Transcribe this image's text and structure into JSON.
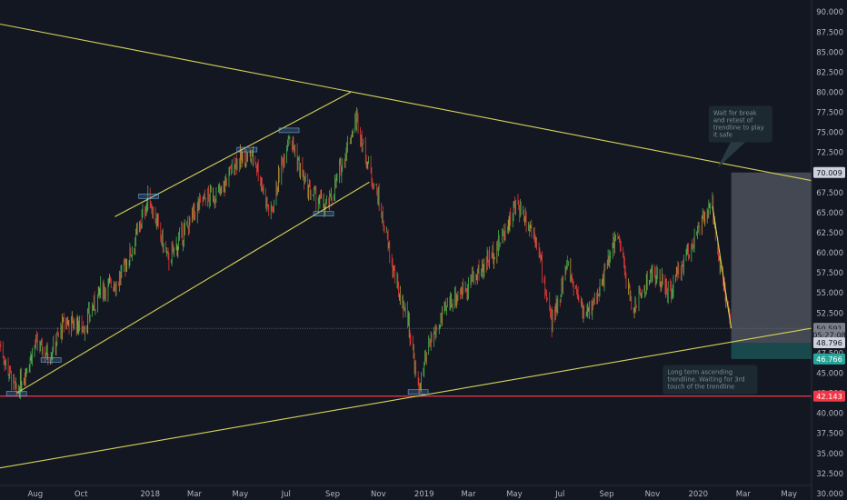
{
  "chart_data": {
    "type": "candlestick",
    "x_ticks": [
      "Aug",
      "Oct",
      "2018",
      "Mar",
      "May",
      "Jul",
      "Sep",
      "Nov",
      "2019",
      "Mar",
      "May",
      "Jul",
      "Sep",
      "Nov",
      "2020",
      "Mar",
      "May"
    ],
    "y_ticks": [
      "90.000",
      "87.500",
      "85.000",
      "82.500",
      "80.000",
      "77.500",
      "75.000",
      "72.500",
      "70.000",
      "67.500",
      "65.000",
      "62.500",
      "60.000",
      "57.500",
      "55.000",
      "52.500",
      "50.000",
      "47.500",
      "45.000",
      "42.500",
      "40.000",
      "37.500",
      "35.000",
      "32.500",
      "30.000"
    ],
    "ylim": [
      29.2,
      91.5
    ],
    "x_range": [
      "2017-06-15",
      "2020-05-31"
    ],
    "anchors": [
      [
        "2017-06-15",
        48.5
      ],
      [
        "2017-07-07",
        42.4
      ],
      [
        "2017-08-01",
        48.6
      ],
      [
        "2017-08-20",
        47.3
      ],
      [
        "2017-09-10",
        51.5
      ],
      [
        "2017-10-05",
        50.8
      ],
      [
        "2017-10-28",
        55.5
      ],
      [
        "2017-11-20",
        56.5
      ],
      [
        "2017-12-10",
        61.0
      ],
      [
        "2017-12-30",
        67.0
      ],
      [
        "2018-01-25",
        59.0
      ],
      [
        "2018-02-15",
        62.5
      ],
      [
        "2018-03-10",
        66.5
      ],
      [
        "2018-04-05",
        67.5
      ],
      [
        "2018-04-25",
        71.5
      ],
      [
        "2018-05-20",
        72.0
      ],
      [
        "2018-06-10",
        64.5
      ],
      [
        "2018-07-05",
        75.0
      ],
      [
        "2018-07-28",
        68.0
      ],
      [
        "2018-08-25",
        65.5
      ],
      [
        "2018-09-15",
        71.5
      ],
      [
        "2018-10-03",
        76.8
      ],
      [
        "2018-10-15",
        72.0
      ],
      [
        "2018-10-30",
        67.5
      ],
      [
        "2018-11-25",
        56.0
      ],
      [
        "2018-12-10",
        52.0
      ],
      [
        "2018-12-24",
        42.8
      ],
      [
        "2019-01-10",
        49.0
      ],
      [
        "2019-02-05",
        54.0
      ],
      [
        "2019-03-10",
        57.0
      ],
      [
        "2019-04-10",
        61.0
      ],
      [
        "2019-05-05",
        66.2
      ],
      [
        "2019-05-30",
        62.0
      ],
      [
        "2019-06-20",
        51.0
      ],
      [
        "2019-07-10",
        58.5
      ],
      [
        "2019-08-05",
        52.0
      ],
      [
        "2019-08-25",
        56.0
      ],
      [
        "2019-09-15",
        62.5
      ],
      [
        "2019-10-05",
        53.0
      ],
      [
        "2019-11-01",
        57.5
      ],
      [
        "2019-11-25",
        55.0
      ],
      [
        "2019-12-20",
        60.5
      ],
      [
        "2020-01-08",
        64.0
      ],
      [
        "2020-01-20",
        65.8
      ],
      [
        "2020-01-30",
        58.5
      ],
      [
        "2020-02-14",
        50.5
      ]
    ],
    "trendlines": [
      {
        "name": "upper-descending-trendline",
        "color": "#d6d45a",
        "points": [
          [
            "2017-06-15",
            88.5
          ],
          [
            "2020-05-31",
            69.0
          ]
        ]
      },
      {
        "name": "long-term-ascending-trendline",
        "color": "#d6d45a",
        "points": [
          [
            "2017-06-15",
            33.2
          ],
          [
            "2020-05-31",
            50.6
          ]
        ]
      },
      {
        "name": "channel-lower-line",
        "color": "#d6d45a",
        "points": [
          [
            "2017-07-07",
            42.5
          ],
          [
            "2018-10-20",
            68.8
          ]
        ]
      },
      {
        "name": "channel-upper-line",
        "color": "#d6d45a",
        "points": [
          [
            "2017-11-15",
            64.5
          ],
          [
            "2018-09-25",
            80.0
          ]
        ]
      },
      {
        "name": "recent-drop-line",
        "color": "#d6d45a",
        "points": [
          [
            "2020-01-20",
            65.8
          ],
          [
            "2020-02-14",
            50.6
          ]
        ]
      }
    ],
    "support_line": {
      "value": 42.143,
      "color": "#f23645"
    },
    "last_price_line": {
      "value": 50.591
    },
    "position": {
      "start": "2020-02-14",
      "end": "2020-05-31",
      "target": 70.009,
      "entry": 48.796,
      "stop": 46.766
    },
    "marked_levels": [
      {
        "date": "2017-07-07",
        "value": 42.4
      },
      {
        "date": "2017-08-22",
        "value": 46.6
      },
      {
        "date": "2017-12-30",
        "value": 67.0
      },
      {
        "date": "2018-05-10",
        "value": 72.8
      },
      {
        "date": "2018-07-05",
        "value": 75.2
      },
      {
        "date": "2018-08-20",
        "value": 64.8
      },
      {
        "date": "2018-12-24",
        "value": 42.6
      }
    ],
    "price_labels": [
      {
        "name": "target-price-label",
        "text": "70.009",
        "value": 70.009,
        "bg": "#cfd2dc",
        "fg": "#131722"
      },
      {
        "name": "last-price-label",
        "text": "50.591",
        "value": 50.591,
        "bg": "#7b7f8a",
        "fg": "#131722"
      },
      {
        "name": "countdown-label",
        "text": "05:27:08",
        "value": 49.8,
        "bg": "#7b7f8a",
        "fg": "#131722"
      },
      {
        "name": "entry-price-label",
        "text": "48.796",
        "value": 48.796,
        "bg": "#cfd2dc",
        "fg": "#131722"
      },
      {
        "name": "stop-price-label",
        "text": "46.766",
        "value": 46.766,
        "bg": "#26a69a",
        "fg": "#ffffff"
      },
      {
        "name": "support-price-label",
        "text": "42.143",
        "value": 42.143,
        "bg": "#f23645",
        "fg": "#ffffff"
      }
    ],
    "annotations": [
      {
        "name": "wait-for-break-note",
        "lines": [
          "Wait for break",
          "and retest of",
          "trendline to play",
          "it safe"
        ],
        "x": "2020-01-15",
        "y": 78.3,
        "pointer": [
          "2020-01-27",
          70.6
        ]
      },
      {
        "name": "long-term-trendline-note",
        "lines": [
          "Long term ascending",
          "trendline. Waiting for 3rd",
          "touch of the trendline"
        ],
        "x": "2019-11-15",
        "y": 46.0
      }
    ],
    "colors": {
      "up": "#4caf50",
      "down": "#e53935",
      "neutral": "#c0a030"
    }
  }
}
